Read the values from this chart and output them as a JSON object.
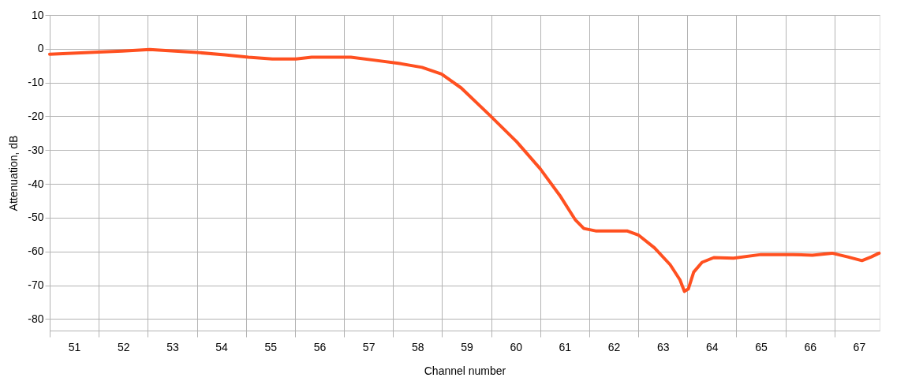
{
  "chart_data": {
    "type": "line",
    "xlabel": "Channel number",
    "ylabel": "Attenuation, dB",
    "x": [
      50.5,
      50.86,
      51.5,
      51.98,
      52.54,
      52.86,
      53.51,
      54.07,
      54.55,
      55.04,
      55.52,
      55.84,
      56.64,
      57.13,
      57.61,
      58.09,
      58.49,
      58.89,
      59.46,
      60.02,
      60.5,
      60.9,
      61.22,
      61.39,
      61.63,
      62.27,
      62.51,
      62.83,
      63.15,
      63.35,
      63.44,
      63.52,
      63.63,
      63.8,
      64.04,
      64.44,
      65.0,
      65.65,
      66.05,
      66.45,
      66.77,
      67.06,
      67.25,
      67.41
    ],
    "series": [
      {
        "color": "#ff5020",
        "values": [
          -1.6,
          -1.4,
          -1,
          -0.7,
          -0.2,
          -0.5,
          -1.1,
          -1.8,
          -2.5,
          -3,
          -3,
          -2.5,
          -2.5,
          -3.4,
          -4.3,
          -5.5,
          -7.5,
          -11.6,
          -19.5,
          -27.5,
          -35.5,
          -43.4,
          -50.7,
          -53.2,
          -53.9,
          -53.9,
          -55.2,
          -58.9,
          -63.9,
          -68.4,
          -71.8,
          -71.1,
          -66.1,
          -63.2,
          -61.8,
          -62,
          -60.9,
          -60.9,
          -61.1,
          -60.5,
          -61.6,
          -62.7,
          -61.6,
          -60.5
        ]
      }
    ],
    "xlim": [
      50.5,
      67.42
    ],
    "ylim": [
      -83.4,
      10
    ],
    "xticks": [
      {
        "value": 50.5,
        "label": null
      },
      51,
      {
        "value": 51.5,
        "label": null
      },
      52,
      {
        "value": 52.5,
        "label": null
      },
      53,
      {
        "value": 53.5,
        "label": null
      },
      54,
      {
        "value": 54.5,
        "label": null
      },
      55,
      {
        "value": 55.5,
        "label": null
      },
      56,
      {
        "value": 56.5,
        "label": null
      },
      57,
      {
        "value": 57.5,
        "label": null
      },
      58,
      {
        "value": 58.5,
        "label": null
      },
      59,
      {
        "value": 59.5,
        "label": null
      },
      60,
      {
        "value": 60.5,
        "label": null
      },
      61,
      {
        "value": 61.5,
        "label": null
      },
      62,
      {
        "value": 62.5,
        "label": null
      },
      63,
      {
        "value": 63.5,
        "label": null
      },
      64,
      {
        "value": 64.5,
        "label": null
      },
      65,
      {
        "value": 65.5,
        "label": null
      },
      66,
      {
        "value": 66.5,
        "label": null
      },
      67
    ],
    "yticks": [
      -80,
      -70,
      -60,
      -50,
      -40,
      -30,
      -20,
      -10,
      0,
      10
    ],
    "grid": true,
    "marker": "none",
    "line_style": "solid"
  }
}
